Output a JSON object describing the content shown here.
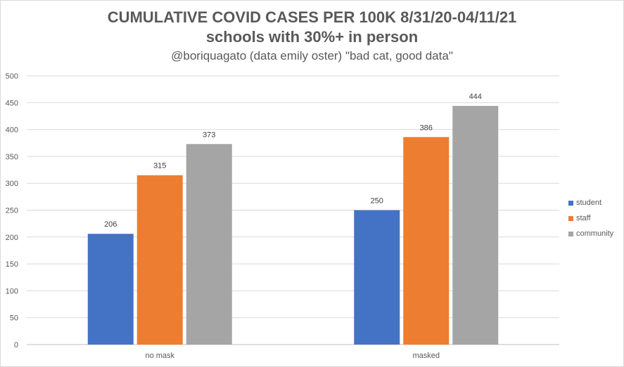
{
  "chart_data": {
    "type": "bar",
    "title": "CUMULATIVE COVID CASES PER 100K 8/31/20-04/11/21",
    "subtitle": "schools with 30%+ in person",
    "caption": "@boriquagato (data emily oster) \"bad cat, good data\"",
    "categories": [
      "no mask",
      "masked"
    ],
    "series": [
      {
        "name": "student",
        "color": "#4472c4",
        "values": [
          206,
          250
        ]
      },
      {
        "name": "staff",
        "color": "#ed7d31",
        "values": [
          315,
          386
        ]
      },
      {
        "name": "community",
        "color": "#a5a5a5",
        "values": [
          373,
          444
        ]
      }
    ],
    "ylim": [
      0,
      500
    ],
    "yticks": [
      0,
      50,
      100,
      150,
      200,
      250,
      300,
      350,
      400,
      450,
      500
    ],
    "grid": true,
    "legend": "right"
  }
}
